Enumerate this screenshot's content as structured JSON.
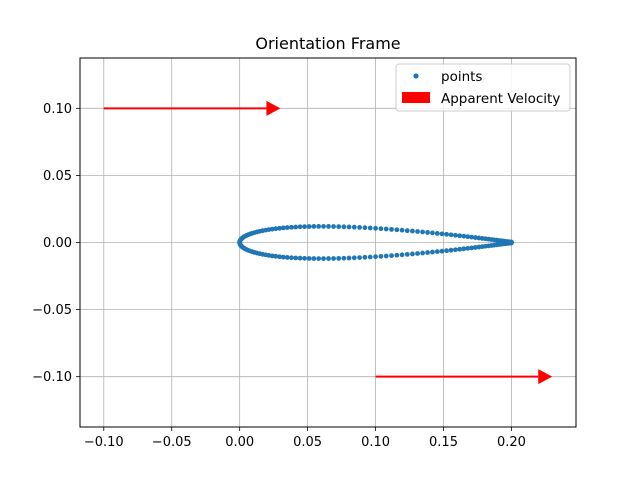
{
  "chart_data": {
    "type": "scatter",
    "title": "Orientation Frame",
    "xlabel": "",
    "ylabel": "",
    "xlim": [
      -0.1175,
      0.2475
    ],
    "ylim": [
      -0.1375,
      0.1375
    ],
    "x_ticks": [
      -0.1,
      -0.05,
      0.0,
      0.05,
      0.1,
      0.15,
      0.2
    ],
    "x_tick_labels": [
      "−0.10",
      "−0.05",
      "0.00",
      "0.05",
      "0.10",
      "0.15",
      "0.20"
    ],
    "y_ticks": [
      0.1,
      0.05,
      0.0,
      -0.05,
      -0.1
    ],
    "y_tick_labels": [
      "0.10",
      "0.05",
      "0.00",
      "−0.05",
      "−0.10"
    ],
    "grid": true,
    "legend_position": "top-right",
    "series": [
      {
        "name": "points",
        "kind": "scatter",
        "color": "#1f77b4",
        "shape": "NACA 4-digit symmetric airfoil",
        "chord": 0.2,
        "thickness_ratio": 0.12,
        "point_count": 160
      }
    ],
    "arrows": {
      "name": "Apparent Velocity",
      "color": "#ff0000",
      "items": [
        {
          "x": -0.1,
          "y": 0.1,
          "dx": 0.13,
          "dy": 0.0
        },
        {
          "x": 0.1,
          "y": -0.1,
          "dx": 0.13,
          "dy": 0.0
        }
      ]
    }
  }
}
